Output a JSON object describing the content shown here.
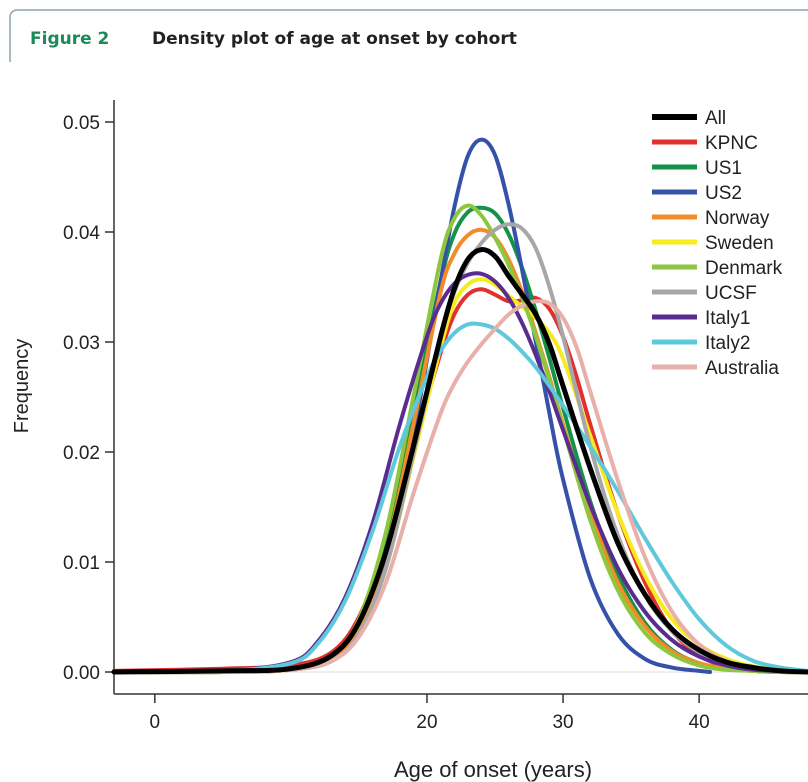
{
  "figure": {
    "label": "Figure 2",
    "title": "Density plot of age at onset by cohort",
    "accent_color": "#1a8a5a",
    "frame_color": "#8fa4ad"
  },
  "chart_data": {
    "type": "line",
    "xlabel": "Age of onset (years)",
    "ylabel": "Frequency",
    "xlim": [
      -3,
      48
    ],
    "ylim": [
      -0.002,
      0.052
    ],
    "xticks": [
      0,
      20,
      30,
      40
    ],
    "xtick_labels": [
      "0",
      "20",
      "30",
      "40"
    ],
    "yticks": [
      0.0,
      0.01,
      0.02,
      0.03,
      0.04,
      0.05
    ],
    "ytick_labels": [
      "0.00",
      "0.01",
      "0.02",
      "0.03",
      "0.04",
      "0.05"
    ],
    "legend_position": "top-right",
    "grid": false,
    "series": [
      {
        "name": "All",
        "color": "#000000",
        "width": 5,
        "x": [
          -3,
          5,
          10,
          13,
          15,
          17,
          19,
          21,
          22,
          23,
          24,
          25,
          26,
          27,
          28,
          29,
          30,
          32,
          34,
          36,
          38,
          40,
          42,
          44,
          46,
          48
        ],
        "y": [
          0,
          0.0001,
          0.0003,
          0.0015,
          0.0045,
          0.011,
          0.0205,
          0.0305,
          0.0348,
          0.0375,
          0.0384,
          0.0378,
          0.036,
          0.0343,
          0.0325,
          0.0298,
          0.026,
          0.0185,
          0.0118,
          0.0071,
          0.0039,
          0.002,
          0.0009,
          0.0004,
          0.0001,
          0
        ]
      },
      {
        "name": "KPNC",
        "color": "#e03030",
        "width": 4,
        "x": [
          -3,
          5,
          10,
          13,
          15,
          17,
          19,
          21,
          22,
          23,
          24,
          25,
          26,
          27,
          28,
          29,
          30,
          31,
          32,
          34,
          36,
          38,
          40,
          42,
          44,
          46,
          48
        ],
        "y": [
          0.0001,
          0.0003,
          0.0006,
          0.0018,
          0.005,
          0.0115,
          0.0205,
          0.029,
          0.0325,
          0.0343,
          0.0348,
          0.0343,
          0.0337,
          0.0338,
          0.034,
          0.033,
          0.0305,
          0.0268,
          0.0225,
          0.0145,
          0.0082,
          0.0038,
          0.0015,
          0.0005,
          0.0001,
          0,
          0
        ]
      },
      {
        "name": "US1",
        "color": "#15924a",
        "width": 4,
        "x": [
          -3,
          5,
          10,
          13,
          15,
          17,
          19,
          21,
          22,
          23,
          24,
          25,
          26,
          27,
          28,
          29,
          30,
          32,
          34,
          36,
          38,
          40,
          42,
          44,
          46,
          48
        ],
        "y": [
          0,
          0,
          0.0002,
          0.0012,
          0.0042,
          0.0115,
          0.0235,
          0.0355,
          0.0398,
          0.0418,
          0.0422,
          0.0417,
          0.0398,
          0.0367,
          0.0328,
          0.0285,
          0.024,
          0.0155,
          0.0089,
          0.0045,
          0.002,
          0.0008,
          0.0003,
          0.0001,
          0,
          0
        ]
      },
      {
        "name": "US2",
        "color": "#3552a8",
        "width": 4,
        "x": [
          -3,
          5,
          10,
          13,
          15,
          17,
          19,
          21,
          22,
          23,
          24,
          25,
          26,
          27,
          28,
          29,
          30,
          32,
          34,
          36,
          38,
          40,
          40.8
        ],
        "y": [
          0,
          0,
          0.0002,
          0.001,
          0.0035,
          0.0098,
          0.0215,
          0.0355,
          0.0422,
          0.0469,
          0.0484,
          0.047,
          0.0425,
          0.0365,
          0.03,
          0.0235,
          0.0175,
          0.0085,
          0.0035,
          0.0012,
          0.0004,
          0.0001,
          0
        ]
      },
      {
        "name": "Norway",
        "color": "#f28c28",
        "width": 4,
        "x": [
          -3,
          5,
          10,
          13,
          15,
          17,
          19,
          21,
          22,
          23,
          24,
          25,
          26,
          27,
          28,
          29,
          30,
          32,
          34,
          36,
          38,
          40,
          42,
          44,
          46,
          48
        ],
        "y": [
          0,
          0,
          0.0002,
          0.0011,
          0.004,
          0.011,
          0.0225,
          0.0345,
          0.038,
          0.0397,
          0.0402,
          0.0395,
          0.0375,
          0.0345,
          0.0308,
          0.0268,
          0.0225,
          0.0145,
          0.0082,
          0.0042,
          0.0019,
          0.0008,
          0.0003,
          0.0001,
          0,
          0
        ]
      },
      {
        "name": "Sweden",
        "color": "#f7ea1e",
        "width": 4,
        "x": [
          -3,
          5,
          10,
          13,
          15,
          17,
          19,
          21,
          22,
          23,
          24,
          25,
          26,
          27,
          28,
          29,
          30,
          32,
          34,
          36,
          38,
          40,
          42,
          44,
          46,
          48
        ],
        "y": [
          0,
          0,
          0.0002,
          0.001,
          0.0035,
          0.0095,
          0.0195,
          0.0295,
          0.0335,
          0.0352,
          0.0357,
          0.0352,
          0.0342,
          0.0332,
          0.0322,
          0.0308,
          0.0285,
          0.0215,
          0.0145,
          0.0088,
          0.0048,
          0.0025,
          0.0012,
          0.0005,
          0.0002,
          0
        ]
      },
      {
        "name": "Denmark",
        "color": "#8dc63f",
        "width": 4,
        "x": [
          -3,
          5,
          10,
          13,
          15,
          17,
          19,
          21,
          22,
          23,
          24,
          25,
          26,
          27,
          28,
          29,
          30,
          32,
          34,
          36,
          38,
          40,
          42,
          44,
          46,
          48
        ],
        "y": [
          0,
          0,
          0.0003,
          0.0014,
          0.0048,
          0.0128,
          0.025,
          0.0375,
          0.0412,
          0.0424,
          0.0415,
          0.0395,
          0.037,
          0.034,
          0.0305,
          0.0265,
          0.0222,
          0.0138,
          0.0075,
          0.0036,
          0.0016,
          0.0006,
          0.0002,
          0.0001,
          0,
          0
        ]
      },
      {
        "name": "UCSF",
        "color": "#a7a7a7",
        "width": 4,
        "x": [
          -3,
          5,
          10,
          13,
          15,
          17,
          19,
          21,
          22,
          23,
          24,
          25,
          26,
          27,
          28,
          29,
          30,
          32,
          34,
          36,
          38,
          40,
          42,
          44,
          46,
          48
        ],
        "y": [
          0,
          0,
          0.0002,
          0.001,
          0.0035,
          0.0095,
          0.0198,
          0.0305,
          0.0345,
          0.0372,
          0.039,
          0.0402,
          0.0407,
          0.0403,
          0.0385,
          0.035,
          0.0305,
          0.0205,
          0.0125,
          0.007,
          0.0037,
          0.0018,
          0.0008,
          0.0003,
          0.0001,
          0
        ]
      },
      {
        "name": "Italy1",
        "color": "#5b2c8f",
        "width": 4,
        "x": [
          -3,
          5,
          10,
          12,
          14,
          16,
          18,
          20,
          21,
          22,
          23,
          24,
          25,
          26,
          27,
          28,
          29,
          30,
          32,
          34,
          36,
          38,
          40,
          42,
          44,
          46,
          48
        ],
        "y": [
          0,
          0.0001,
          0.0009,
          0.0028,
          0.0068,
          0.0135,
          0.0225,
          0.0305,
          0.0335,
          0.0353,
          0.0361,
          0.0362,
          0.0355,
          0.034,
          0.0317,
          0.0288,
          0.0255,
          0.022,
          0.0152,
          0.0095,
          0.0055,
          0.0029,
          0.0014,
          0.0006,
          0.0002,
          0.0001,
          0
        ]
      },
      {
        "name": "Italy2",
        "color": "#5ec8dc",
        "width": 4,
        "x": [
          -3,
          5,
          10,
          12,
          14,
          16,
          18,
          20,
          21,
          22,
          23,
          24,
          25,
          26,
          27,
          28,
          29,
          30,
          32,
          34,
          36,
          38,
          40,
          42,
          44,
          46,
          48
        ],
        "y": [
          0,
          0.0001,
          0.0008,
          0.0026,
          0.0065,
          0.0128,
          0.0205,
          0.0268,
          0.0292,
          0.0308,
          0.0316,
          0.0316,
          0.0312,
          0.0303,
          0.0291,
          0.0277,
          0.026,
          0.0242,
          0.0205,
          0.0165,
          0.0122,
          0.0082,
          0.0048,
          0.0024,
          0.001,
          0.0004,
          0.0001
        ]
      },
      {
        "name": "Australia",
        "color": "#e8b0aa",
        "width": 4,
        "x": [
          -3,
          5,
          10,
          13,
          15,
          17,
          19,
          21,
          22,
          23,
          24,
          25,
          26,
          27,
          28,
          29,
          30,
          31,
          32,
          34,
          36,
          38,
          40,
          42,
          44,
          46,
          48
        ],
        "y": [
          0,
          0,
          0.0002,
          0.001,
          0.0032,
          0.0082,
          0.0162,
          0.0235,
          0.0262,
          0.0282,
          0.0298,
          0.0312,
          0.0325,
          0.0333,
          0.0337,
          0.0335,
          0.0322,
          0.0295,
          0.0255,
          0.0175,
          0.0105,
          0.0055,
          0.0025,
          0.001,
          0.0004,
          0.0001,
          0
        ]
      }
    ]
  }
}
